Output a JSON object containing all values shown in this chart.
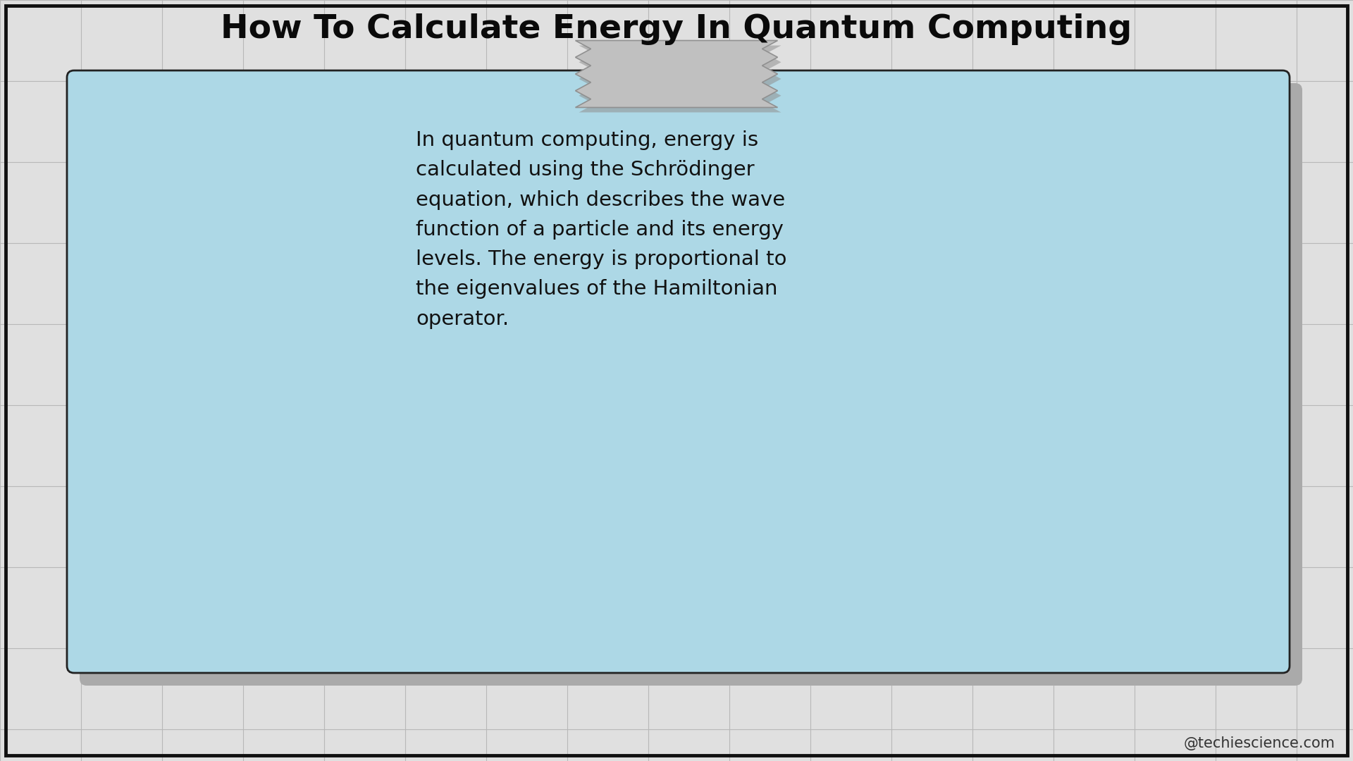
{
  "title": "How To Calculate Energy In Quantum Computing",
  "title_fontsize": 34,
  "title_fontweight": "bold",
  "background_color": "#ffffff",
  "tile_color": "#e0e0e0",
  "tile_line_color": "#b8b8b8",
  "outer_border_color": "#111111",
  "card_bg_color": "#add8e6",
  "card_border_color": "#222222",
  "shadow_color": "#aaaaaa",
  "tape_color": "#c0c0c0",
  "tape_border_color": "#909090",
  "tape_shadow_color": "#909090",
  "body_text": "In quantum computing, energy is\ncalculated using the Schrödinger\nequation, which describes the wave\nfunction of a particle and its energy\nlevels. The energy is proportional to\nthe eigenvalues of the Hamiltonian\noperator.",
  "body_fontsize": 21,
  "watermark": "@techiescience.com",
  "watermark_fontsize": 15,
  "tile_size": 115
}
